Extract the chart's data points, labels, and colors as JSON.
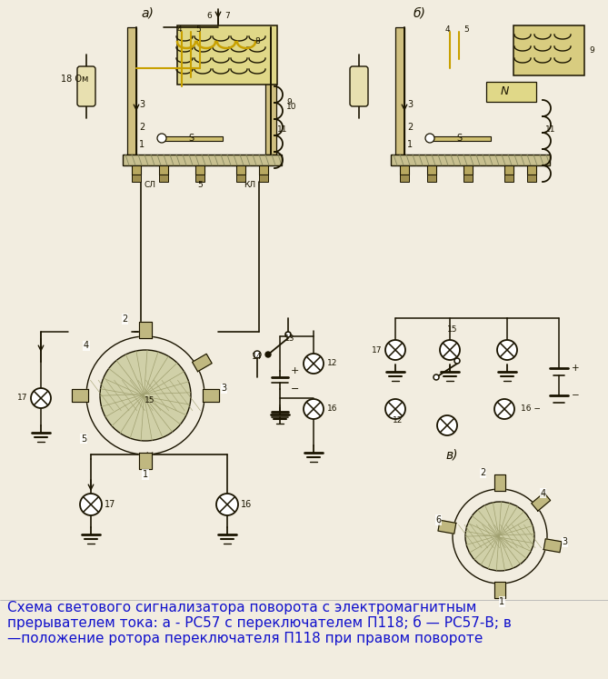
{
  "caption_line1": "Схема светового сигнализатора поворота с электромагнитным",
  "caption_line2": "прерывателем тока: а - РС57 с переключателем П118; б — РС57-В; в",
  "caption_line3": "—положение ротора переключателя П118 при правом повороте",
  "caption_color": "#1010cc",
  "bg_color": "#f2ede0",
  "label_a": "а)",
  "label_b": "б)",
  "label_v": "в)",
  "fig_width": 6.69,
  "fig_height": 7.47,
  "dpi": 100,
  "lc": "#1a1400",
  "yc": "#c8a000",
  "hatc": "#b8b890"
}
